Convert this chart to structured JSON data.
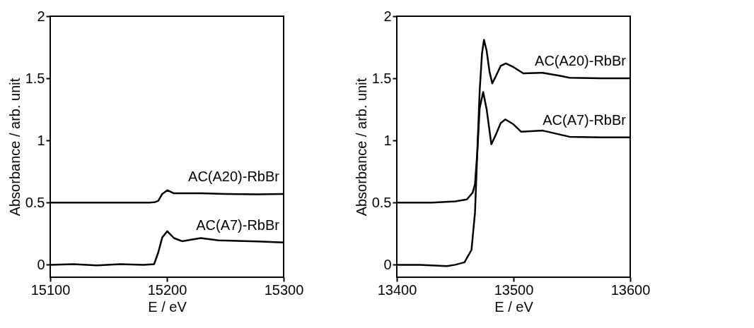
{
  "chart_data": [
    {
      "type": "line",
      "xlabel": "E / eV",
      "ylabel": "Absorbance / arb. unit",
      "xlim": [
        15100,
        15300
      ],
      "ylim": [
        -0.1,
        2
      ],
      "xticks": [
        15100,
        15200,
        15300
      ],
      "yticks": [
        0,
        0.5,
        1,
        1.5,
        2
      ],
      "grid": false,
      "legend": false,
      "line_style": "solid",
      "series": [
        {
          "name": "AC(A20)-RbBr",
          "color": "#000000",
          "x": [
            15100,
            15130,
            15160,
            15185,
            15190,
            15192.6,
            15196,
            15200.3,
            15206,
            15213,
            15230,
            15250,
            15277,
            15300
          ],
          "values": [
            0.5,
            0.5,
            0.5,
            0.5,
            0.505,
            0.515,
            0.57,
            0.6,
            0.575,
            0.575,
            0.575,
            0.57,
            0.567,
            0.57
          ]
        },
        {
          "name": "AC(A7)-RbBr",
          "color": "#000000",
          "x": [
            15100,
            15120,
            15140,
            15160,
            15180,
            15189,
            15192.6,
            15196,
            15200.3,
            15206,
            15213,
            15229,
            15244,
            15277,
            15300
          ],
          "values": [
            0,
            0.005,
            -0.005,
            0.005,
            0,
            0.005,
            0.1,
            0.22,
            0.27,
            0.215,
            0.19,
            0.215,
            0.197,
            0.188,
            0.18
          ]
        }
      ]
    },
    {
      "type": "line",
      "xlabel": "E / eV",
      "ylabel": "Absorbance / arb. unit",
      "xlim": [
        13400,
        13600
      ],
      "ylim": [
        -0.1,
        2
      ],
      "xticks": [
        13400,
        13500,
        13600
      ],
      "yticks": [
        0,
        0.5,
        1,
        1.5,
        2
      ],
      "grid": false,
      "legend": false,
      "line_style": "solid",
      "series": [
        {
          "name": "AC(A20)-RbBr",
          "color": "#000000",
          "x": [
            13400,
            13430,
            13450,
            13460,
            13465,
            13467,
            13469,
            13471,
            13473,
            13474.7,
            13477,
            13479.5,
            13481.8,
            13485,
            13489,
            13493.4,
            13500,
            13508.4,
            13525,
            13540,
            13548,
            13575,
            13600
          ],
          "values": [
            0.5,
            0.5,
            0.51,
            0.526,
            0.58,
            0.65,
            0.91,
            1.4,
            1.7,
            1.81,
            1.72,
            1.55,
            1.46,
            1.52,
            1.6,
            1.62,
            1.59,
            1.54,
            1.545,
            1.52,
            1.505,
            1.5,
            1.5
          ]
        },
        {
          "name": "AC(A7)-RbBr",
          "color": "#000000",
          "x": [
            13400,
            13420,
            13443,
            13450,
            13458,
            13464,
            13467,
            13469,
            13471,
            13474,
            13477,
            13481,
            13485,
            13489,
            13493,
            13500,
            13506.6,
            13525,
            13548,
            13575,
            13600
          ],
          "values": [
            0,
            0,
            -0.01,
            0,
            0.02,
            0.12,
            0.42,
            0.91,
            1.26,
            1.39,
            1.25,
            0.97,
            1.05,
            1.14,
            1.17,
            1.13,
            1.07,
            1.08,
            1.03,
            1.025,
            1.025
          ]
        }
      ]
    }
  ]
}
